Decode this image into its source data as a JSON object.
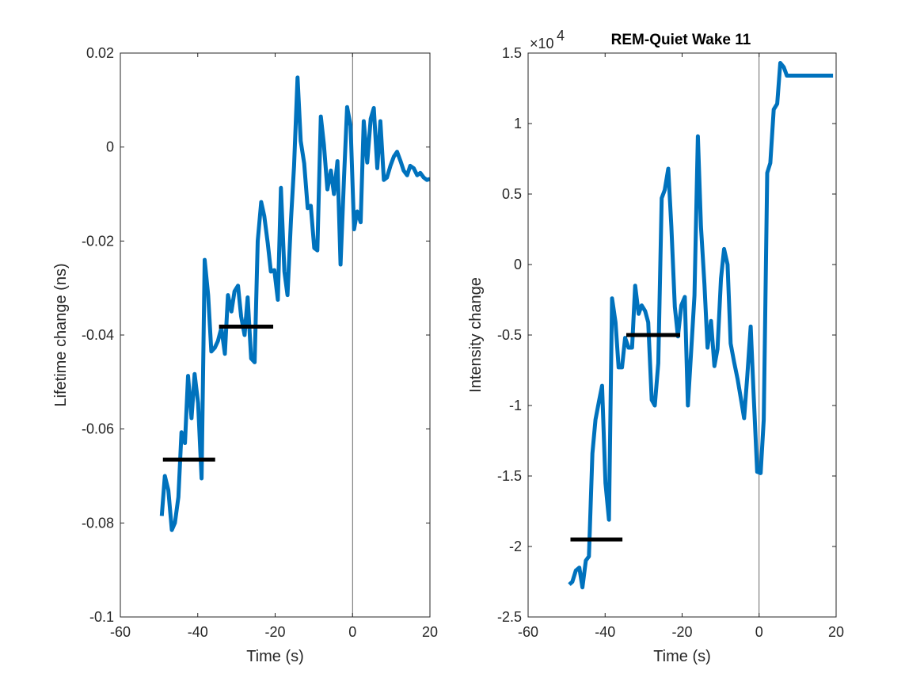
{
  "chart_data": [
    {
      "type": "line",
      "title": "",
      "xlabel": "Time (s)",
      "ylabel": "Lifetime change (ns)",
      "xlim": [
        -60,
        20
      ],
      "ylim": [
        -0.1,
        0.02
      ],
      "xticks": [
        -60,
        -40,
        -20,
        0,
        20
      ],
      "xtick_labels": [
        "-60",
        "-40",
        "-20",
        "0",
        "20"
      ],
      "yticks": [
        -0.1,
        -0.08,
        -0.06,
        -0.04,
        -0.02,
        0,
        0.02
      ],
      "ytick_labels": [
        "-0.1",
        "-0.08",
        "-0.06",
        "-0.04",
        "-0.02",
        "0",
        "0.02"
      ],
      "grid": false,
      "vline_x": 0,
      "line_color": "#0072BD",
      "hline_color": "#000000",
      "series": [
        {
          "name": "lifetime",
          "x": [
            -49.3,
            -48.5,
            -47.6,
            -46.7,
            -45.9,
            -45.0,
            -44.2,
            -43.3,
            -42.5,
            -41.6,
            -40.8,
            -39.9,
            -39.0,
            -38.2,
            -37.3,
            -36.5,
            -35.6,
            -34.8,
            -33.9,
            -33.0,
            -32.2,
            -31.3,
            -30.5,
            -29.6,
            -28.8,
            -27.9,
            -27.1,
            -26.2,
            -25.3,
            -24.5,
            -23.6,
            -22.8,
            -21.9,
            -21.1,
            -20.2,
            -19.3,
            -18.5,
            -17.6,
            -16.8,
            -15.9,
            -15.1,
            -14.2,
            -13.4,
            -12.5,
            -11.6,
            -10.8,
            -9.9,
            -9.1,
            -8.2,
            -7.4,
            -6.5,
            -5.6,
            -4.8,
            -3.9,
            -3.1,
            -2.2,
            -1.4,
            -0.5,
            0.4,
            1.2,
            2.1,
            2.9,
            3.8,
            4.7,
            5.5,
            6.4,
            7.2,
            8.1,
            8.9,
            9.8,
            10.7,
            11.5,
            12.4,
            13.2,
            14.1,
            14.9,
            15.8,
            16.7,
            17.5,
            18.4,
            19.2,
            20.0
          ],
          "y": [
            -0.0785,
            -0.07,
            -0.073,
            -0.0815,
            -0.08,
            -0.0745,
            -0.0607,
            -0.063,
            -0.0487,
            -0.0577,
            -0.0483,
            -0.0545,
            -0.0705,
            -0.024,
            -0.0315,
            -0.0435,
            -0.0427,
            -0.0413,
            -0.0385,
            -0.044,
            -0.0315,
            -0.035,
            -0.0307,
            -0.0295,
            -0.036,
            -0.04,
            -0.032,
            -0.045,
            -0.0458,
            -0.02,
            -0.0117,
            -0.0147,
            -0.0205,
            -0.0265,
            -0.0262,
            -0.0325,
            -0.0087,
            -0.0265,
            -0.0315,
            -0.0155,
            -0.004,
            0.0148,
            0.0013,
            -0.0035,
            -0.013,
            -0.0125,
            -0.0215,
            -0.022,
            0.0065,
            0.0005,
            -0.009,
            -0.005,
            -0.01,
            -0.003,
            -0.025,
            -0.0065,
            0.0085,
            0.0045,
            -0.0175,
            -0.0137,
            -0.016,
            0.0055,
            -0.0033,
            0.006,
            0.0083,
            -0.0045,
            0.0055,
            -0.007,
            -0.0065,
            -0.004,
            -0.002,
            -0.001,
            -0.003,
            -0.005,
            -0.006,
            -0.004,
            -0.0045,
            -0.006,
            -0.0055,
            -0.0065,
            -0.007,
            -0.0068
          ]
        }
      ],
      "hlines": [
        {
          "x": [
            -49.0,
            -35.5
          ],
          "y": -0.0665
        },
        {
          "x": [
            -34.5,
            -20.5
          ],
          "y": -0.0382
        }
      ]
    },
    {
      "type": "line",
      "title": "REM-Quiet Wake 11",
      "xlabel": "Time (s)",
      "ylabel": "Intensity change",
      "exponent_label": "×10",
      "exponent_power": "4",
      "xlim": [
        -60,
        20
      ],
      "ylim": [
        -2.5,
        1.5
      ],
      "y_multiplier": 10000,
      "xticks": [
        -60,
        -40,
        -20,
        0,
        20
      ],
      "xtick_labels": [
        "-60",
        "-40",
        "-20",
        "0",
        "20"
      ],
      "yticks": [
        -2.5,
        -2,
        -1.5,
        -1,
        -0.5,
        0,
        0.5,
        1,
        1.5
      ],
      "ytick_labels": [
        "-2.5",
        "-2",
        "-1.5",
        "-1",
        "-0.5",
        "0",
        "0.5",
        "1",
        "1.5"
      ],
      "grid": false,
      "vline_x": 0,
      "line_color": "#0072BD",
      "hline_color": "#000000",
      "series": [
        {
          "name": "intensity",
          "x": [
            -49.3,
            -48.5,
            -47.6,
            -46.7,
            -45.9,
            -45.0,
            -44.2,
            -43.3,
            -42.5,
            -41.6,
            -40.8,
            -39.9,
            -39.0,
            -38.2,
            -37.3,
            -36.5,
            -35.6,
            -34.8,
            -33.9,
            -33.0,
            -32.2,
            -31.3,
            -30.5,
            -29.6,
            -28.8,
            -27.9,
            -27.1,
            -26.2,
            -25.3,
            -24.5,
            -23.6,
            -22.8,
            -21.9,
            -21.1,
            -20.2,
            -19.3,
            -18.5,
            -17.6,
            -16.8,
            -15.9,
            -15.1,
            -14.2,
            -13.4,
            -12.5,
            -11.6,
            -10.8,
            -9.9,
            -9.1,
            -8.2,
            -7.4,
            -6.5,
            -5.6,
            -4.8,
            -3.9,
            -3.1,
            -2.2,
            -1.4,
            -0.5,
            0.4,
            1.2,
            2.1,
            2.9,
            3.8,
            4.7,
            5.5,
            6.4,
            7.2,
            8.1,
            8.9,
            9.8,
            10.7,
            11.5,
            12.4,
            13.2,
            14.1,
            14.9,
            15.8,
            16.7,
            17.5,
            18.4,
            19.2
          ],
          "y": [
            -2.27,
            -2.25,
            -2.17,
            -2.15,
            -2.29,
            -2.1,
            -2.07,
            -1.34,
            -1.1,
            -0.97,
            -0.86,
            -1.55,
            -1.81,
            -0.24,
            -0.41,
            -0.73,
            -0.73,
            -0.52,
            -0.59,
            -0.59,
            -0.15,
            -0.35,
            -0.29,
            -0.33,
            -0.41,
            -0.96,
            -1.0,
            -0.7,
            0.47,
            0.53,
            0.68,
            0.27,
            -0.3,
            -0.51,
            -0.29,
            -0.23,
            -1.0,
            -0.59,
            -0.22,
            0.91,
            0.27,
            -0.14,
            -0.59,
            -0.4,
            -0.72,
            -0.6,
            -0.1,
            0.11,
            0.0,
            -0.56,
            -0.69,
            -0.81,
            -0.94,
            -1.09,
            -0.8,
            -0.44,
            -0.93,
            -1.47,
            -1.48,
            -1.1,
            0.65,
            0.72,
            1.1,
            1.14,
            1.43,
            1.4,
            1.34,
            1.34,
            1.34,
            1.34,
            1.34,
            1.34,
            1.34,
            1.34,
            1.34,
            1.34,
            1.34,
            1.34,
            1.34,
            1.34,
            1.34
          ]
        }
      ],
      "hlines": [
        {
          "x": [
            -49.0,
            -35.5
          ],
          "y": -1.95
        },
        {
          "x": [
            -34.5,
            -20.5
          ],
          "y": -0.5
        }
      ]
    }
  ]
}
